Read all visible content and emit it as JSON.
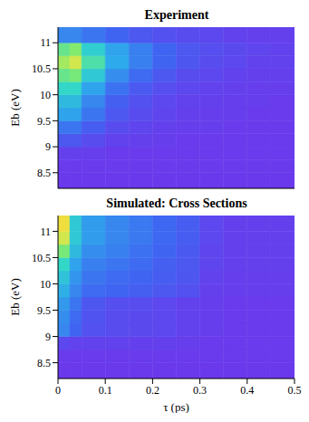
{
  "chart_data": [
    {
      "type": "heatmap",
      "title": "Experiment",
      "y_label": "Eb (eV)",
      "tick_labels": "y",
      "xlim": [
        0,
        0.5
      ],
      "xticks": [
        0,
        0.1,
        0.2,
        0.3,
        0.4,
        0.5
      ],
      "ylim": [
        8.2,
        11.3
      ],
      "yticks": [
        8.5,
        9,
        9.5,
        10,
        10.5,
        11
      ],
      "zlim": [
        0,
        1
      ],
      "x_edges": [
        0,
        0.025,
        0.05,
        0.1,
        0.15,
        0.2,
        0.25,
        0.3,
        0.35,
        0.4,
        0.45,
        0.5
      ],
      "y_edges": [
        8.2,
        8.5,
        8.75,
        9,
        9.25,
        9.5,
        9.75,
        10,
        10.25,
        10.5,
        10.75,
        11,
        11.3
      ],
      "cells": [
        [
          0.02,
          0.02,
          0.02,
          0.02,
          0.02,
          0.02,
          0.02,
          0.02,
          0.02,
          0.02,
          0.02
        ],
        [
          0.03,
          0.03,
          0.03,
          0.03,
          0.03,
          0.03,
          0.03,
          0.03,
          0.03,
          0.03,
          0.03
        ],
        [
          0.05,
          0.05,
          0.04,
          0.03,
          0.03,
          0.03,
          0.03,
          0.03,
          0.03,
          0.03,
          0.03
        ],
        [
          0.15,
          0.15,
          0.1,
          0.06,
          0.05,
          0.04,
          0.03,
          0.03,
          0.03,
          0.03,
          0.03
        ],
        [
          0.25,
          0.25,
          0.17,
          0.1,
          0.07,
          0.05,
          0.04,
          0.04,
          0.03,
          0.03,
          0.03
        ],
        [
          0.38,
          0.38,
          0.25,
          0.15,
          0.1,
          0.07,
          0.05,
          0.04,
          0.04,
          0.03,
          0.03
        ],
        [
          0.45,
          0.45,
          0.3,
          0.18,
          0.12,
          0.08,
          0.06,
          0.05,
          0.04,
          0.04,
          0.03
        ],
        [
          0.55,
          0.55,
          0.38,
          0.24,
          0.16,
          0.11,
          0.08,
          0.06,
          0.05,
          0.04,
          0.04
        ],
        [
          0.65,
          0.68,
          0.5,
          0.32,
          0.22,
          0.15,
          0.1,
          0.08,
          0.06,
          0.05,
          0.05
        ],
        [
          0.75,
          0.82,
          0.6,
          0.4,
          0.28,
          0.2,
          0.14,
          0.1,
          0.08,
          0.06,
          0.06
        ],
        [
          0.65,
          0.7,
          0.52,
          0.38,
          0.28,
          0.2,
          0.15,
          0.11,
          0.09,
          0.07,
          0.06
        ],
        [
          0.3,
          0.3,
          0.25,
          0.2,
          0.15,
          0.12,
          0.1,
          0.08,
          0.06,
          0.05,
          0.05
        ]
      ]
    },
    {
      "type": "heatmap",
      "title": "Simulated: Cross Sections",
      "x_label": "τ (ps)",
      "y_label": "Eb (eV)",
      "xlim": [
        0,
        0.5
      ],
      "xticks": [
        0,
        0.1,
        0.2,
        0.3,
        0.4,
        0.5
      ],
      "ylim": [
        8.2,
        11.3
      ],
      "yticks": [
        8.5,
        9,
        9.5,
        10,
        10.5,
        11
      ],
      "zlim": [
        0,
        1
      ],
      "x_edges": [
        0,
        0.025,
        0.05,
        0.1,
        0.15,
        0.2,
        0.25,
        0.3,
        0.35,
        0.4,
        0.45,
        0.5
      ],
      "y_edges": [
        8.2,
        8.5,
        8.75,
        9,
        9.25,
        9.5,
        9.75,
        10,
        10.25,
        10.5,
        10.75,
        11,
        11.3
      ],
      "cells": [
        [
          0.02,
          0.02,
          0.02,
          0.02,
          0.02,
          0.02,
          0.02,
          0.02,
          0.02,
          0.02,
          0.02
        ],
        [
          0.03,
          0.03,
          0.03,
          0.03,
          0.03,
          0.03,
          0.03,
          0.03,
          0.03,
          0.03,
          0.03
        ],
        [
          0.08,
          0.06,
          0.06,
          0.06,
          0.05,
          0.05,
          0.04,
          0.03,
          0.03,
          0.03,
          0.03
        ],
        [
          0.3,
          0.2,
          0.12,
          0.1,
          0.09,
          0.08,
          0.06,
          0.04,
          0.03,
          0.03,
          0.03
        ],
        [
          0.32,
          0.22,
          0.13,
          0.1,
          0.09,
          0.08,
          0.06,
          0.04,
          0.03,
          0.03,
          0.03
        ],
        [
          0.35,
          0.25,
          0.14,
          0.11,
          0.1,
          0.08,
          0.06,
          0.04,
          0.03,
          0.03,
          0.03
        ],
        [
          0.42,
          0.3,
          0.22,
          0.2,
          0.18,
          0.15,
          0.12,
          0.05,
          0.04,
          0.04,
          0.04
        ],
        [
          0.48,
          0.34,
          0.25,
          0.22,
          0.2,
          0.17,
          0.14,
          0.06,
          0.04,
          0.04,
          0.04
        ],
        [
          0.55,
          0.38,
          0.28,
          0.25,
          0.22,
          0.18,
          0.15,
          0.07,
          0.05,
          0.05,
          0.05
        ],
        [
          0.68,
          0.45,
          0.32,
          0.28,
          0.24,
          0.2,
          0.16,
          0.07,
          0.05,
          0.05,
          0.05
        ],
        [
          0.82,
          0.5,
          0.36,
          0.3,
          0.26,
          0.21,
          0.17,
          0.08,
          0.05,
          0.05,
          0.05
        ],
        [
          0.9,
          0.5,
          0.36,
          0.3,
          0.26,
          0.21,
          0.17,
          0.08,
          0.05,
          0.05,
          0.05
        ]
      ]
    }
  ]
}
